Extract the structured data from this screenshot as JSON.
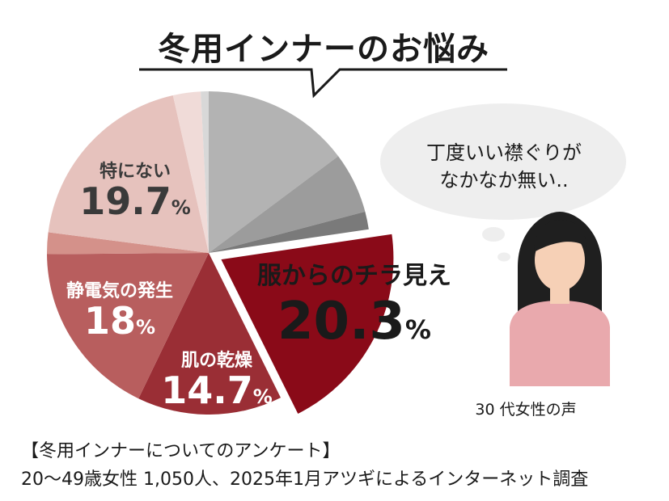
{
  "title": "冬用インナーのお悩み",
  "speech_bubble": {
    "line1": "丁度いい襟ぐりが",
    "line2": "なかなか無い.."
  },
  "person_caption": "30 代女性の声",
  "footer": {
    "line1": "【冬用インナーについてのアンケート】",
    "line2": "20～49歳女性 1,050人、2025年1月アツギによるインターネット調査"
  },
  "chart_data": {
    "type": "pie",
    "start_angle": "top",
    "direction": "clockwise",
    "slices": [
      {
        "label": "",
        "value": 15.0,
        "color": "#b3b3b3"
      },
      {
        "label": "",
        "value": 6.2,
        "color": "#9c9c9c"
      },
      {
        "label": "",
        "value": 1.8,
        "color": "#7a7a7a"
      },
      {
        "label": "服からのチラ見え",
        "num": "20.3",
        "unit": "%",
        "value": 20.3,
        "color": "#8a0a18",
        "exploded": true
      },
      {
        "label": "肌の乾燥",
        "num": "14.7",
        "unit": "%",
        "value": 14.7,
        "color": "#9a2e35"
      },
      {
        "label": "静電気の発生",
        "num": "18",
        "unit": "%",
        "value": 18.0,
        "color": "#b85e5e"
      },
      {
        "label": "",
        "value": 2.2,
        "color": "#d4918a"
      },
      {
        "label": "特にない",
        "num": "19.7",
        "unit": "%",
        "value": 19.7,
        "color": "#e6c2bd"
      },
      {
        "label": "",
        "value": 2.8,
        "color": "#f0dbd8"
      },
      {
        "label": "",
        "value": 0.8,
        "color": "#d8d8d8"
      }
    ]
  }
}
